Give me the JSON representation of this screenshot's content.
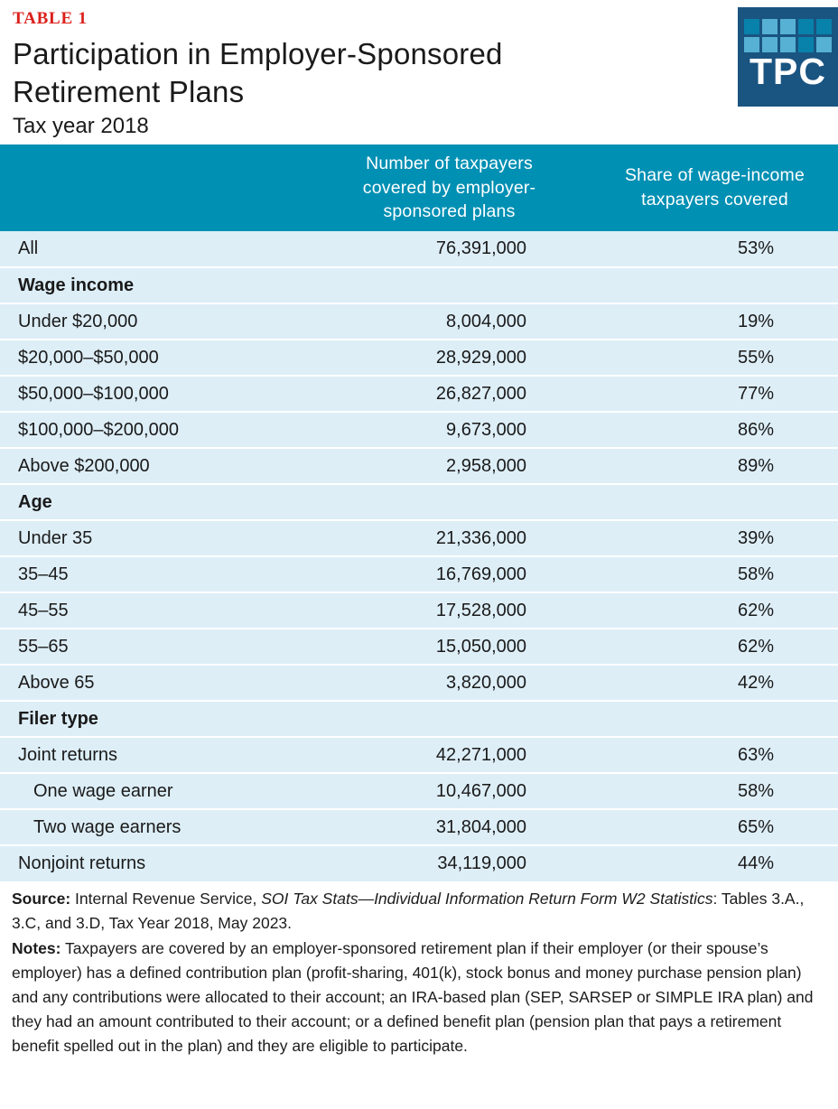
{
  "header": {
    "table_label": "TABLE 1",
    "title_line1": "Participation in Employer-Sponsored",
    "title_line2": "Retirement Plans",
    "subtitle": "Tax year 2018"
  },
  "logo": {
    "text": "TPC",
    "pattern": [
      [
        "dark",
        "light",
        "light",
        "dark",
        "dark"
      ],
      [
        "light",
        "light",
        "light",
        "dark",
        "light"
      ]
    ]
  },
  "colors": {
    "header_teal": "#0090b4",
    "row_blue": "#ddeef7",
    "separator": "#ffffff",
    "label_red": "#da201a",
    "logo_navy": "#1a5480",
    "logo_square_dark": "#0881ab",
    "logo_square_light": "#56b1d4",
    "text": "#1a1a1a"
  },
  "chart_data": {
    "type": "table",
    "table_label": "TABLE 1",
    "title": "Participation in Employer-Sponsored Retirement Plans",
    "subtitle": "Tax year 2018",
    "columns": [
      "",
      "Number of taxpayers covered by employer-sponsored plans",
      "Share of wage-income taxpayers covered"
    ],
    "rows": [
      {
        "kind": "data",
        "label": "All",
        "covered": 76391000,
        "share_pct": 53
      },
      {
        "kind": "section",
        "label": "Wage income"
      },
      {
        "kind": "data",
        "label": "Under $20,000",
        "covered": 8004000,
        "share_pct": 19
      },
      {
        "kind": "data",
        "label": "$20,000–$50,000",
        "covered": 28929000,
        "share_pct": 55
      },
      {
        "kind": "data",
        "label": "$50,000–$100,000",
        "covered": 26827000,
        "share_pct": 77
      },
      {
        "kind": "data",
        "label": "$100,000–$200,000",
        "covered": 9673000,
        "share_pct": 86
      },
      {
        "kind": "data",
        "label": "Above $200,000",
        "covered": 2958000,
        "share_pct": 89
      },
      {
        "kind": "section",
        "label": "Age"
      },
      {
        "kind": "data",
        "label": "Under 35",
        "covered": 21336000,
        "share_pct": 39
      },
      {
        "kind": "data",
        "label": "35–45",
        "covered": 16769000,
        "share_pct": 58
      },
      {
        "kind": "data",
        "label": "45–55",
        "covered": 17528000,
        "share_pct": 62
      },
      {
        "kind": "data",
        "label": "55–65",
        "covered": 15050000,
        "share_pct": 62
      },
      {
        "kind": "data",
        "label": "Above 65",
        "covered": 3820000,
        "share_pct": 42
      },
      {
        "kind": "section",
        "label": "Filer type"
      },
      {
        "kind": "data",
        "label": "Joint returns",
        "covered": 42271000,
        "share_pct": 63
      },
      {
        "kind": "data",
        "label": "One wage earner",
        "indent": true,
        "covered": 10467000,
        "share_pct": 58
      },
      {
        "kind": "data",
        "label": "Two wage earners",
        "indent": true,
        "covered": 31804000,
        "share_pct": 65
      },
      {
        "kind": "data",
        "label": "Nonjoint returns",
        "covered": 34119000,
        "share_pct": 44
      }
    ]
  },
  "footer": {
    "source_label": "Source:",
    "source_before_italic": " Internal Revenue Service, ",
    "source_italic": "SOI Tax Stats—Individual Information Return Form W2 Statistics",
    "source_after_italic": ": Tables 3.A., 3.C, and 3.D, Tax Year 2018, May 2023.",
    "notes_label": "Notes:",
    "notes_text": " Taxpayers are covered by an employer-sponsored retirement plan if their employer (or their spouse’s employer) has a defined contribution plan (profit-sharing, 401(k), stock bonus and money purchase pension plan) and any contributions were allocated to their account; an IRA-based plan (SEP, SARSEP or SIMPLE IRA plan) and they had an amount contributed to their account; or a defined benefit plan (pension plan that pays a retirement benefit spelled out in the plan) and they are eligible to participate."
  }
}
